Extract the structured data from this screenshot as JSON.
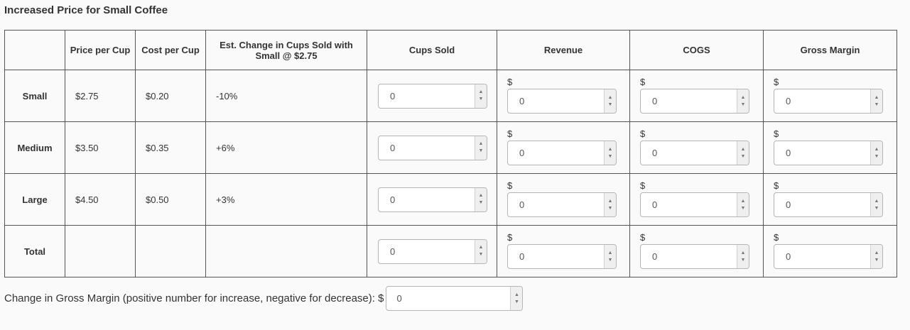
{
  "title": "Increased Price for Small Coffee",
  "headers": [
    "",
    "Price per Cup",
    "Cost per Cup",
    "Est. Change in Cups Sold with Small @ $2.75",
    "Cups Sold",
    "Revenue",
    "COGS",
    "Gross Margin"
  ],
  "currency_symbol": "$",
  "rows": [
    {
      "label": "Small",
      "price": "$2.75",
      "cost": "$0.20",
      "change": "-10%",
      "cups": "0",
      "revenue": "0",
      "cogs": "0",
      "margin": "0"
    },
    {
      "label": "Medium",
      "price": "$3.50",
      "cost": "$0.35",
      "change": "+6%",
      "cups": "0",
      "revenue": "0",
      "cogs": "0",
      "margin": "0"
    },
    {
      "label": "Large",
      "price": "$4.50",
      "cost": "$0.50",
      "change": "+3%",
      "cups": "0",
      "revenue": "0",
      "cogs": "0",
      "margin": "0"
    },
    {
      "label": "Total",
      "price": "",
      "cost": "",
      "change": "",
      "cups": "0",
      "revenue": "0",
      "cogs": "0",
      "margin": "0"
    }
  ],
  "footer": {
    "label": "Change in Gross Margin (positive number for increase, negative for decrease): $",
    "value": "0"
  }
}
